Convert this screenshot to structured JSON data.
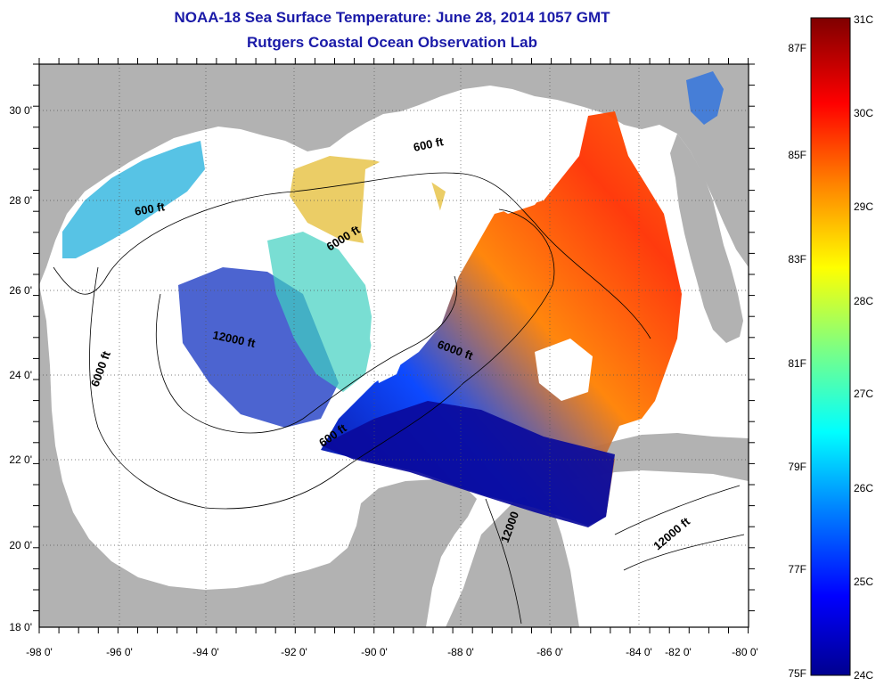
{
  "header": {
    "title_line1": "NOAA-18 Sea Surface Temperature:  June 28, 2014 1057 GMT",
    "title_line2": "Rutgers Coastal Ocean Observation Lab"
  },
  "map": {
    "lon_labels": [
      "-98 0'",
      "-96 0'",
      "-94 0'",
      "-92 0'",
      "-90 0'",
      "-88 0'",
      "-86 0'",
      "-84 0'",
      "-82 0'",
      "-80 0'"
    ],
    "lat_labels": [
      "30 0'",
      "28 0'",
      "26 0'",
      "24 0'",
      "22 0'",
      "20 0'",
      "18 0'"
    ],
    "contour_labels": [
      "600 ft",
      "600 ft",
      "6000 ft",
      "6000 ft",
      "12000 ft",
      "6000 ft",
      "600 ft",
      "12000",
      "12000 ft"
    ],
    "colors": {
      "land": "#b2b2b2",
      "frame": "#000000",
      "grid": "#555555"
    }
  },
  "colorbar": {
    "fahrenheit_labels": [
      "87F",
      "85F",
      "83F",
      "81F",
      "79F",
      "77F",
      "75F"
    ],
    "celsius_labels": [
      "31C",
      "30C",
      "29C",
      "28C",
      "27C",
      "26C",
      "25C",
      "24C"
    ],
    "gradient": [
      "#7f0000",
      "#ff0000",
      "#ff8000",
      "#ffff00",
      "#80ff80",
      "#00ffff",
      "#0080ff",
      "#0000ff",
      "#00008f"
    ]
  }
}
